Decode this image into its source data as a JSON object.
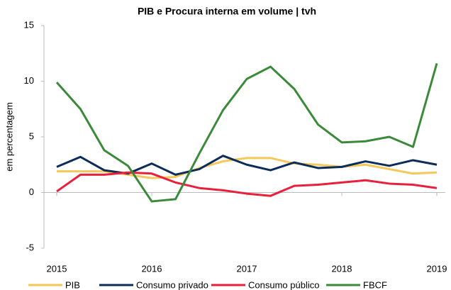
{
  "chart_data": {
    "type": "line",
    "title": "PIB e Procura interna em volume | tvh",
    "y_label": "em percentagem",
    "categories": [
      "2015",
      null,
      null,
      null,
      "2016",
      null,
      null,
      null,
      "2017",
      null,
      null,
      null,
      "2018",
      null,
      null,
      null,
      "2019"
    ],
    "series": [
      {
        "name": "PIB",
        "color": "#f5c85a",
        "values": [
          1.9,
          1.9,
          1.9,
          1.6,
          1.3,
          1.4,
          2.2,
          2.8,
          3.1,
          3.1,
          2.6,
          2.5,
          2.3,
          2.5,
          2.1,
          1.7,
          1.8
        ]
      },
      {
        "name": "Consumo privado",
        "color": "#0c2c5a",
        "values": [
          2.3,
          3.2,
          2.0,
          1.7,
          2.6,
          1.6,
          2.1,
          3.3,
          2.5,
          2.0,
          2.7,
          2.2,
          2.3,
          2.8,
          2.4,
          2.9,
          2.5
        ]
      },
      {
        "name": "Consumo público",
        "color": "#e8203c",
        "values": [
          0.1,
          1.6,
          1.6,
          1.8,
          1.7,
          0.9,
          0.4,
          0.2,
          -0.1,
          -0.3,
          0.6,
          0.7,
          0.9,
          1.1,
          0.8,
          0.7,
          0.4
        ]
      },
      {
        "name": "FBCF",
        "color": "#3a8a3a",
        "values": [
          9.9,
          7.5,
          3.8,
          2.4,
          -0.8,
          -0.6,
          3.5,
          7.4,
          10.2,
          11.3,
          9.3,
          6.1,
          4.5,
          4.6,
          5.0,
          4.1,
          11.6
        ]
      }
    ],
    "ylim": [
      -5,
      15
    ],
    "yticks": [
      -5,
      0,
      5,
      10,
      15
    ]
  }
}
